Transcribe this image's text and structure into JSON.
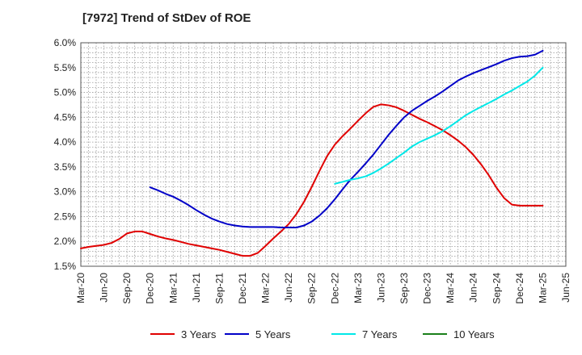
{
  "chart_data": {
    "type": "line",
    "title": "[7972]  Trend of StDev of ROE",
    "xlabel": "",
    "ylabel": "",
    "x_ticks": [
      "Mar-20",
      "Jun-20",
      "Sep-20",
      "Dec-20",
      "Mar-21",
      "Jun-21",
      "Sep-21",
      "Dec-21",
      "Mar-22",
      "Jun-22",
      "Sep-22",
      "Dec-22",
      "Mar-23",
      "Jun-23",
      "Sep-23",
      "Dec-23",
      "Mar-24",
      "Jun-24",
      "Sep-24",
      "Dec-24",
      "Mar-25",
      "Jun-25"
    ],
    "y_ticks": [
      "1.5%",
      "2.0%",
      "2.5%",
      "3.0%",
      "3.5%",
      "4.0%",
      "4.5%",
      "5.0%",
      "5.5%",
      "6.0%"
    ],
    "ylim": [
      1.5,
      6.0
    ],
    "grid": true,
    "legend_position": "bottom",
    "series": [
      {
        "name": "3 Years",
        "color": "#e00000",
        "x": [
          "Mar-20",
          "Apr-20",
          "May-20",
          "Jun-20",
          "Jul-20",
          "Aug-20",
          "Sep-20",
          "Oct-20",
          "Nov-20",
          "Dec-20",
          "Jan-21",
          "Feb-21",
          "Mar-21",
          "Apr-21",
          "May-21",
          "Jun-21",
          "Jul-21",
          "Aug-21",
          "Sep-21",
          "Oct-21",
          "Nov-21",
          "Dec-21",
          "Jan-22",
          "Feb-22",
          "Mar-22",
          "Apr-22",
          "May-22",
          "Jun-22",
          "Jul-22",
          "Aug-22",
          "Sep-22",
          "Oct-22",
          "Nov-22",
          "Dec-22",
          "Jan-23",
          "Feb-23",
          "Mar-23",
          "Apr-23",
          "May-23",
          "Jun-23",
          "Jul-23",
          "Aug-23",
          "Sep-23",
          "Oct-23",
          "Nov-23",
          "Dec-23",
          "Jan-24",
          "Feb-24",
          "Mar-24",
          "Apr-24",
          "May-24",
          "Jun-24",
          "Jul-24",
          "Aug-24",
          "Sep-24",
          "Oct-24",
          "Nov-24",
          "Dec-24",
          "Jan-25",
          "Feb-25",
          "Mar-25"
        ],
        "values": [
          1.86,
          1.89,
          1.91,
          1.93,
          1.97,
          2.05,
          2.16,
          2.2,
          2.2,
          2.15,
          2.1,
          2.06,
          2.03,
          1.99,
          1.95,
          1.92,
          1.89,
          1.86,
          1.83,
          1.79,
          1.75,
          1.71,
          1.71,
          1.77,
          1.91,
          2.06,
          2.2,
          2.35,
          2.55,
          2.8,
          3.1,
          3.42,
          3.72,
          3.95,
          4.12,
          4.27,
          4.43,
          4.58,
          4.71,
          4.76,
          4.74,
          4.7,
          4.63,
          4.55,
          4.47,
          4.4,
          4.32,
          4.24,
          4.14,
          4.03,
          3.9,
          3.74,
          3.55,
          3.33,
          3.08,
          2.87,
          2.74,
          2.72,
          2.72,
          2.72,
          2.72
        ]
      },
      {
        "name": "5 Years",
        "color": "#0000c8",
        "x": [
          "Dec-20",
          "Jan-21",
          "Feb-21",
          "Mar-21",
          "Apr-21",
          "May-21",
          "Jun-21",
          "Jul-21",
          "Aug-21",
          "Sep-21",
          "Oct-21",
          "Nov-21",
          "Dec-21",
          "Jan-22",
          "Feb-22",
          "Mar-22",
          "Apr-22",
          "May-22",
          "Jun-22",
          "Jul-22",
          "Aug-22",
          "Sep-22",
          "Oct-22",
          "Nov-22",
          "Dec-22",
          "Jan-23",
          "Feb-23",
          "Mar-23",
          "Apr-23",
          "May-23",
          "Jun-23",
          "Jul-23",
          "Aug-23",
          "Sep-23",
          "Oct-23",
          "Nov-23",
          "Dec-23",
          "Jan-24",
          "Feb-24",
          "Mar-24",
          "Apr-24",
          "May-24",
          "Jun-24",
          "Jul-24",
          "Aug-24",
          "Sep-24",
          "Oct-24",
          "Nov-24",
          "Dec-24",
          "Jan-25",
          "Feb-25",
          "Mar-25"
        ],
        "values": [
          3.09,
          3.03,
          2.96,
          2.9,
          2.82,
          2.73,
          2.63,
          2.54,
          2.46,
          2.4,
          2.35,
          2.32,
          2.3,
          2.29,
          2.29,
          2.29,
          2.29,
          2.28,
          2.28,
          2.28,
          2.32,
          2.4,
          2.52,
          2.67,
          2.85,
          3.05,
          3.24,
          3.4,
          3.57,
          3.75,
          3.95,
          4.15,
          4.33,
          4.5,
          4.63,
          4.73,
          4.83,
          4.92,
          5.02,
          5.13,
          5.24,
          5.32,
          5.39,
          5.45,
          5.51,
          5.57,
          5.64,
          5.69,
          5.72,
          5.73,
          5.76,
          5.84
        ]
      },
      {
        "name": "7 Years",
        "color": "#00e8e8",
        "x": [
          "Dec-22",
          "Jan-23",
          "Feb-23",
          "Mar-23",
          "Apr-23",
          "May-23",
          "Jun-23",
          "Jul-23",
          "Aug-23",
          "Sep-23",
          "Oct-23",
          "Nov-23",
          "Dec-23",
          "Jan-24",
          "Feb-24",
          "Mar-24",
          "Apr-24",
          "May-24",
          "Jun-24",
          "Jul-24",
          "Aug-24",
          "Sep-24",
          "Oct-24",
          "Nov-24",
          "Dec-24",
          "Jan-25",
          "Feb-25",
          "Mar-25"
        ],
        "values": [
          3.16,
          3.2,
          3.24,
          3.27,
          3.31,
          3.38,
          3.47,
          3.57,
          3.68,
          3.79,
          3.91,
          4.0,
          4.07,
          4.14,
          4.22,
          4.32,
          4.43,
          4.54,
          4.63,
          4.71,
          4.79,
          4.87,
          4.96,
          5.04,
          5.13,
          5.22,
          5.34,
          5.5
        ]
      },
      {
        "name": "10 Years",
        "color": "#1a7f1a",
        "x": [],
        "values": []
      }
    ]
  }
}
